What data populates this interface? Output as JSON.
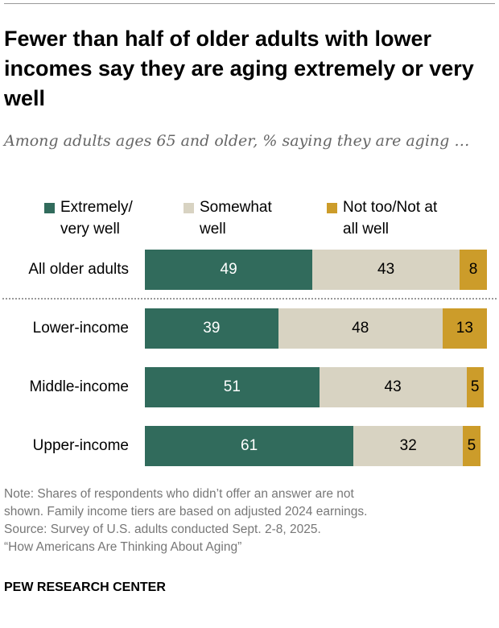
{
  "title": "Fewer than half of older adults with lower incomes say they are aging extremely or very well",
  "subtitle": "Among adults ages 65 and older, % saying they are aging …",
  "chart_data": {
    "type": "bar",
    "orientation": "horizontal",
    "stacked": true,
    "categories": [
      "All older adults",
      "Lower-income",
      "Middle-income",
      "Upper-income"
    ],
    "series": [
      {
        "name": "Extremely/ very well",
        "values": [
          49,
          39,
          51,
          61
        ],
        "color": "#316b5c",
        "label_color": "#ffffff"
      },
      {
        "name": "Somewhat well",
        "values": [
          43,
          48,
          43,
          32
        ],
        "color": "#d8d3c2",
        "label_color": "#000000"
      },
      {
        "name": "Not too/Not at all well",
        "values": [
          8,
          13,
          5,
          5
        ],
        "color": "#cc9c2a",
        "label_color": "#000000"
      }
    ],
    "legend_lines": [
      [
        "Extremely/",
        "very well"
      ],
      [
        "Somewhat",
        "well"
      ],
      [
        "Not too/Not at",
        "all well"
      ]
    ],
    "xlim": [
      0,
      100
    ],
    "grid": false,
    "legend": "top",
    "separator_after_category": 0
  },
  "note": "Note: Shares of respondents who didn’t offer an answer are not\nshown. Family income tiers are based on adjusted 2024 earnings.\nSource: Survey of U.S. adults conducted Sept. 2-8, 2025.\n“How Americans Are Thinking About Aging”",
  "brand": "PEW RESEARCH CENTER"
}
